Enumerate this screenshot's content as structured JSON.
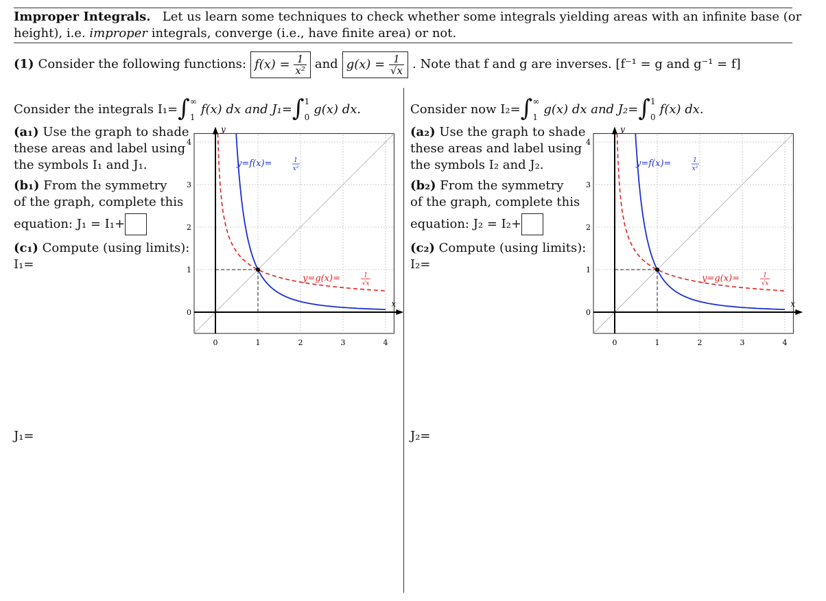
{
  "header": {
    "title": "Improper Integrals.",
    "line1_rest": "Let us learn some techniques to check whether some integrals yielding areas with an infinite base (or",
    "line2_a": "height), i.e. ",
    "line2_em": "improper",
    "line2_b": " integrals, converge (i.e., have finite area) or not."
  },
  "problem1": {
    "label": "(1)",
    "intro": "Consider the following functions:",
    "f_lhs": "f(x) =",
    "f_num": "1",
    "f_den": "x²",
    "and": "and",
    "g_lhs": "g(x) =",
    "g_num": "1",
    "g_den": "√x",
    "note": ". Note that f and g are inverses. [f⁻¹ = g and g⁻¹ = f]"
  },
  "left": {
    "intro_a": "Consider the integrals I₁=",
    "int1_upper": "∞",
    "int1_lower": "1",
    "int1_body": "f(x) dx and J₁=",
    "int2_upper": "1",
    "int2_lower": "0",
    "int2_body": "g(x) dx.",
    "a_label": "(a₁)",
    "a_text1": " Use the graph to shade",
    "a_text2": "these areas and label using",
    "a_text3": "the symbols I₁ and J₁.",
    "b_label": "(b₁)",
    "b_text1": " From the symmetry",
    "b_text2": "of the graph, complete this",
    "b_text3": "equation: J₁ = I₁+",
    "c_label": "(c₁)",
    "c_text1": " Compute (using limits):",
    "c_text2": "I₁=",
    "j_answer": "J₁="
  },
  "right": {
    "intro_a": "Consider now I₂=",
    "int1_upper": "∞",
    "int1_lower": "1",
    "int1_body": "g(x) dx and J₂=",
    "int2_upper": "1",
    "int2_lower": "0",
    "int2_body": "f(x) dx.",
    "a_label": "(a₂)",
    "a_text1": " Use the graph to shade",
    "a_text2": "these areas and label using",
    "a_text3": "the symbols I₂ and J₂.",
    "b_label": "(b₂)",
    "b_text1": " From the symmetry",
    "b_text2": "of the graph, complete this",
    "b_text3": "equation: J₂ = I₂+",
    "c_label": "(c₂)",
    "c_text1": " Compute (using limits):",
    "c_text2": "I₂=",
    "j_answer": "J₂="
  },
  "chart_data": [
    {
      "type": "line",
      "xlabel": "x",
      "ylabel": "y",
      "xlim": [
        -0.5,
        4.2
      ],
      "ylim": [
        -0.5,
        4.2
      ],
      "xticks": [
        "0",
        "1",
        "2",
        "3",
        "4"
      ],
      "yticks": [
        "0",
        "1",
        "2",
        "3",
        "4"
      ],
      "grid": true,
      "series": [
        {
          "name": "y=f(x)=1/x²",
          "label_prefix": "y=f(x)=",
          "label_num": "1",
          "label_den": "x²",
          "style": "solid",
          "color": "#1a2fd6"
        },
        {
          "name": "y=g(x)=1/√x",
          "label_prefix": "y=g(x)=",
          "label_num": "1",
          "label_den": "√x",
          "style": "dashed",
          "color": "#e02020"
        },
        {
          "name": "y=x",
          "style": "solid",
          "color": "#bbbbbb"
        }
      ],
      "points": [
        [
          1,
          1
        ]
      ]
    },
    {
      "type": "line",
      "xlabel": "x",
      "ylabel": "y",
      "xlim": [
        -0.5,
        4.2
      ],
      "ylim": [
        -0.5,
        4.2
      ],
      "xticks": [
        "0",
        "1",
        "2",
        "3",
        "4"
      ],
      "yticks": [
        "0",
        "1",
        "2",
        "3",
        "4"
      ],
      "grid": true,
      "series": [
        {
          "name": "y=f(x)=1/x²",
          "label_prefix": "y=f(x)=",
          "label_num": "1",
          "label_den": "x²",
          "style": "solid",
          "color": "#1a2fd6"
        },
        {
          "name": "y=g(x)=1/√x",
          "label_prefix": "y=g(x)=",
          "label_num": "1",
          "label_den": "√x",
          "style": "dashed",
          "color": "#e02020"
        },
        {
          "name": "y=x",
          "style": "solid",
          "color": "#bbbbbb"
        }
      ],
      "points": [
        [
          1,
          1
        ]
      ]
    }
  ]
}
